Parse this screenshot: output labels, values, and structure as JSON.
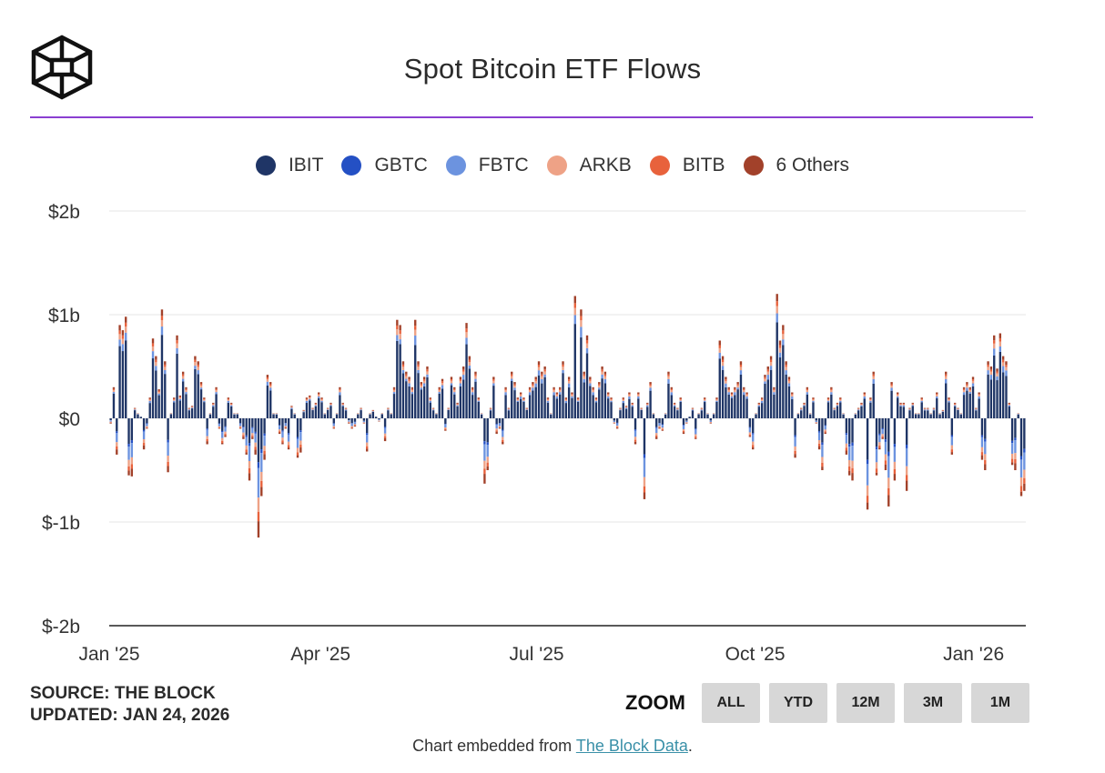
{
  "header": {
    "title": "Spot Bitcoin ETF Flows",
    "accent_color": "#8a3fd1"
  },
  "logo": {
    "icon": "the-block-cube-logo"
  },
  "legend": [
    {
      "label": "IBIT",
      "color": "#1f3566"
    },
    {
      "label": "GBTC",
      "color": "#2450c4"
    },
    {
      "label": "FBTC",
      "color": "#6c93df"
    },
    {
      "label": "ARKB",
      "color": "#eea286"
    },
    {
      "label": "BITB",
      "color": "#e8623c"
    },
    {
      "label": "6 Others",
      "color": "#a2412a"
    }
  ],
  "chart_data": {
    "type": "bar",
    "stacked": true,
    "title": "Spot Bitcoin ETF Flows",
    "x_tick_labels": [
      "Jan '25",
      "Apr '25",
      "Jul '25",
      "Oct '25",
      "Jan '26"
    ],
    "y_tick_labels": [
      "$2b",
      "$1b",
      "$0",
      "$-1b",
      "$-2b"
    ],
    "y_ticks": [
      2,
      1,
      0,
      -1,
      -2
    ],
    "ylim": [
      -2,
      2
    ],
    "y_unit": "billion USD",
    "x_range": [
      "2025-01-02",
      "2026-01-23"
    ],
    "grid": true,
    "legend_position": "top",
    "series": [
      "IBIT",
      "GBTC",
      "FBTC",
      "ARKB",
      "BITB",
      "6 Others"
    ],
    "note": "daily net flow totals per trading day (estimated from gridlines); composition by series approximated",
    "values": [
      -0.05,
      0.3,
      -0.35,
      0.9,
      0.85,
      0.98,
      -0.55,
      -0.56,
      0.1,
      0.05,
      0.02,
      -0.3,
      -0.1,
      0.2,
      0.77,
      0.6,
      0.28,
      1.05,
      0.55,
      -0.52,
      0.05,
      0.2,
      0.8,
      0.22,
      0.45,
      0.3,
      0.1,
      0.12,
      0.6,
      0.55,
      0.35,
      0.2,
      -0.25,
      0.05,
      0.15,
      0.3,
      -0.1,
      -0.25,
      -0.18,
      0.2,
      0.15,
      0.05,
      0.05,
      -0.1,
      -0.2,
      -0.35,
      -0.6,
      -0.2,
      -0.35,
      -1.15,
      -0.75,
      -0.4,
      0.42,
      0.35,
      0.05,
      0.05,
      -0.15,
      -0.25,
      -0.1,
      -0.3,
      0.12,
      0.05,
      -0.38,
      -0.33,
      0.08,
      0.2,
      0.22,
      0.1,
      0.15,
      0.25,
      0.2,
      0.05,
      0.1,
      0.15,
      -0.1,
      0.05,
      0.3,
      0.15,
      0.1,
      -0.05,
      -0.1,
      -0.08,
      0.05,
      0.1,
      -0.05,
      -0.32,
      0.05,
      0.08,
      0.02,
      -0.03,
      0.05,
      -0.22,
      0.1,
      0.05,
      0.3,
      0.95,
      0.9,
      0.55,
      0.45,
      0.4,
      0.3,
      0.95,
      0.55,
      0.35,
      0.4,
      0.5,
      0.2,
      0.1,
      0.05,
      0.3,
      0.38,
      -0.12,
      0.1,
      0.4,
      0.3,
      0.15,
      0.4,
      0.5,
      0.92,
      0.6,
      0.3,
      0.45,
      0.2,
      0.05,
      -0.63,
      -0.5,
      0.1,
      0.4,
      -0.15,
      -0.1,
      -0.25,
      0.3,
      0.1,
      0.45,
      0.35,
      0.2,
      0.25,
      0.2,
      0.1,
      0.3,
      0.35,
      0.4,
      0.55,
      0.45,
      0.5,
      0.2,
      0.05,
      0.3,
      0.25,
      0.3,
      0.55,
      0.2,
      0.4,
      0.25,
      1.18,
      0.2,
      1.05,
      0.45,
      0.8,
      0.4,
      0.3,
      0.2,
      0.35,
      0.5,
      0.45,
      0.25,
      0.2,
      -0.05,
      -0.1,
      0.1,
      0.2,
      0.12,
      0.25,
      0.15,
      -0.25,
      0.25,
      0.1,
      -0.78,
      0.15,
      0.35,
      0.05,
      -0.2,
      -0.1,
      -0.12,
      0.05,
      0.45,
      0.3,
      0.15,
      0.1,
      0.2,
      -0.15,
      -0.05,
      0.02,
      0.1,
      -0.2,
      0.05,
      0.1,
      0.2,
      0.05,
      -0.05,
      0.05,
      0.2,
      0.75,
      0.6,
      0.4,
      0.3,
      0.25,
      0.3,
      0.35,
      0.55,
      0.3,
      0.25,
      -0.18,
      -0.3,
      0.05,
      0.15,
      0.2,
      0.42,
      0.5,
      0.6,
      0.3,
      1.2,
      0.75,
      0.9,
      0.55,
      0.4,
      0.25,
      -0.38,
      0.05,
      0.1,
      0.15,
      0.3,
      0.05,
      0.2,
      -0.05,
      -0.3,
      -0.5,
      -0.15,
      0.2,
      0.3,
      0.1,
      0.15,
      0.2,
      0.05,
      -0.35,
      -0.55,
      -0.6,
      0.05,
      0.1,
      0.15,
      0.25,
      -0.88,
      0.2,
      0.45,
      -0.55,
      -0.3,
      -0.2,
      -0.5,
      -0.85,
      0.35,
      -0.6,
      0.25,
      0.15,
      0.15,
      -0.7,
      0.1,
      0.15,
      0.05,
      0.05,
      0.2,
      0.1,
      0.1,
      0.05,
      0.1,
      0.25,
      0.05,
      0.08,
      0.45,
      0.2,
      -0.35,
      0.15,
      0.1,
      0.05,
      0.3,
      0.35,
      0.3,
      0.4,
      0.1,
      0.25,
      -0.4,
      -0.5,
      0.55,
      0.5,
      0.8,
      0.48,
      0.82,
      0.6,
      0.55,
      0.15,
      -0.45,
      -0.5,
      0.05,
      -0.75,
      -0.7
    ]
  },
  "source": {
    "line1": "SOURCE: THE BLOCK",
    "line2": "UPDATED: JAN 24, 2026"
  },
  "zoom": {
    "label": "ZOOM",
    "buttons": [
      "ALL",
      "YTD",
      "12M",
      "3M",
      "1M"
    ]
  },
  "footer": {
    "prefix": "Chart embedded from ",
    "link_text": "The Block Data",
    "suffix": "."
  }
}
